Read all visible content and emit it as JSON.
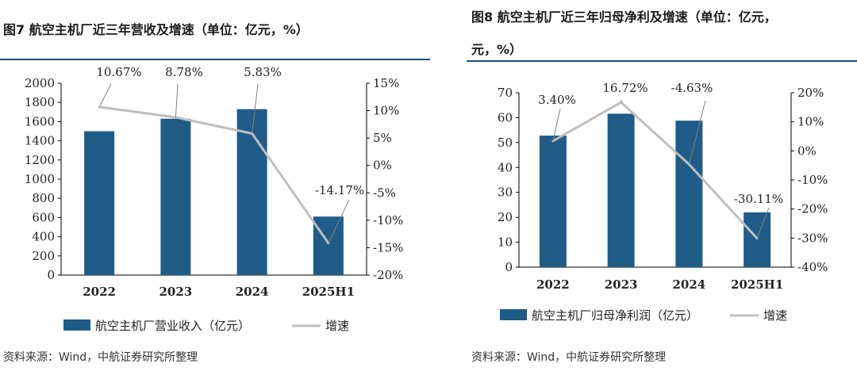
{
  "left": {
    "title": "图7  航空主机厂近三年营收及增速（单位：亿元，%）",
    "source": "资料来源：Wind，中航证券研究所整理"
  },
  "right": {
    "title_line1": "图8  航空主机厂近三年归母净利及增速（单位：亿元，",
    "title_line2": "元，%）",
    "source": "资料来源：Wind，中航证券研究所整理"
  },
  "colors": {
    "bar": "#1f5c87",
    "line": "#bfbfbf",
    "rule": "#1f4e79"
  },
  "chart_data": [
    {
      "type": "bar",
      "title": "航空主机厂近三年营收及增速",
      "categories": [
        "2022",
        "2023",
        "2024",
        "2025H1"
      ],
      "series": [
        {
          "name": "航空主机厂营业收入（亿元）",
          "type": "bar",
          "axis": "left",
          "values": [
            1500,
            1630,
            1730,
            610
          ]
        },
        {
          "name": "增速",
          "type": "line",
          "axis": "right",
          "values": [
            10.67,
            8.78,
            5.83,
            -14.17
          ],
          "labels": [
            "10.67%",
            "8.78%",
            "5.83%",
            "-14.17%"
          ]
        }
      ],
      "ylim_left": [
        0,
        2000
      ],
      "yticks_left": [
        "2000",
        "1800",
        "1600",
        "1400",
        "1200",
        "1000",
        "800",
        "600",
        "400",
        "200",
        "0"
      ],
      "ylim_right": [
        -20,
        15
      ],
      "yticks_right": [
        "15%",
        "10%",
        "5%",
        "0%",
        "-5%",
        "-10%",
        "-15%",
        "-20%"
      ],
      "legend": [
        "航空主机厂营业收入（亿元）",
        "增速"
      ]
    },
    {
      "type": "bar",
      "title": "航空主机厂近三年归母净利及增速",
      "categories": [
        "2022",
        "2023",
        "2024",
        "2025H1"
      ],
      "series": [
        {
          "name": "航空主机厂归母净利润（亿元）",
          "type": "bar",
          "axis": "left",
          "values": [
            52.8,
            61.6,
            58.8,
            22.0
          ]
        },
        {
          "name": "增速",
          "type": "line",
          "axis": "right",
          "values": [
            3.4,
            16.72,
            -4.63,
            -30.11
          ],
          "labels": [
            "3.40%",
            "16.72%",
            "-4.63%",
            "-30.11%"
          ]
        }
      ],
      "ylim_left": [
        0,
        70
      ],
      "yticks_left": [
        "70",
        "60",
        "50",
        "40",
        "30",
        "20",
        "10",
        "0"
      ],
      "ylim_right": [
        -40,
        20
      ],
      "yticks_right": [
        "20%",
        "10%",
        "0%",
        "-10%",
        "-20%",
        "-30%",
        "-40%"
      ],
      "legend": [
        "航空主机厂归母净利润（亿元）",
        "增速"
      ]
    }
  ]
}
